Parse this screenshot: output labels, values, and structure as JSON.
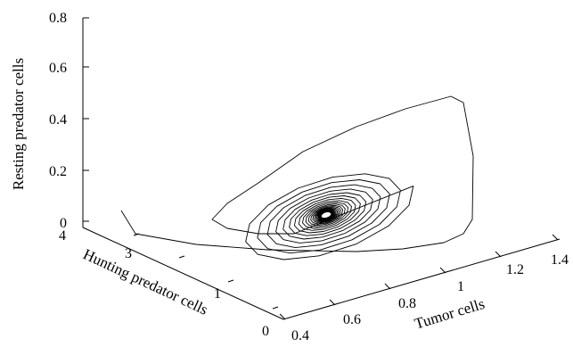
{
  "chart_data": {
    "type": "line",
    "projection": "3d",
    "title": "",
    "axes": {
      "x": {
        "label": "Tumor cells",
        "range": [
          0.4,
          1.4
        ],
        "ticks": [
          "0.4",
          "0.6",
          "0.8",
          "1",
          "1.2",
          "1.4"
        ]
      },
      "y": {
        "label": "Hunting predator cells",
        "range": [
          0,
          4
        ],
        "ticks": [
          "0",
          "1",
          "3",
          "4"
        ]
      },
      "z": {
        "label": "Resting predator cells",
        "range": [
          0,
          0.8
        ],
        "ticks": [
          "0",
          "0.2",
          "0.4",
          "0.6",
          "0.8"
        ]
      }
    },
    "grid": false,
    "legend": "none",
    "series": [
      {
        "description": "damped spiral trajectory converging to a stable focus",
        "start": {
          "x": 0.43,
          "y": 3.7,
          "z": 0.02
        },
        "equilibrium": {
          "x": 0.88,
          "y": 1.45,
          "z": 0.27
        },
        "color": "#000000"
      }
    ]
  }
}
